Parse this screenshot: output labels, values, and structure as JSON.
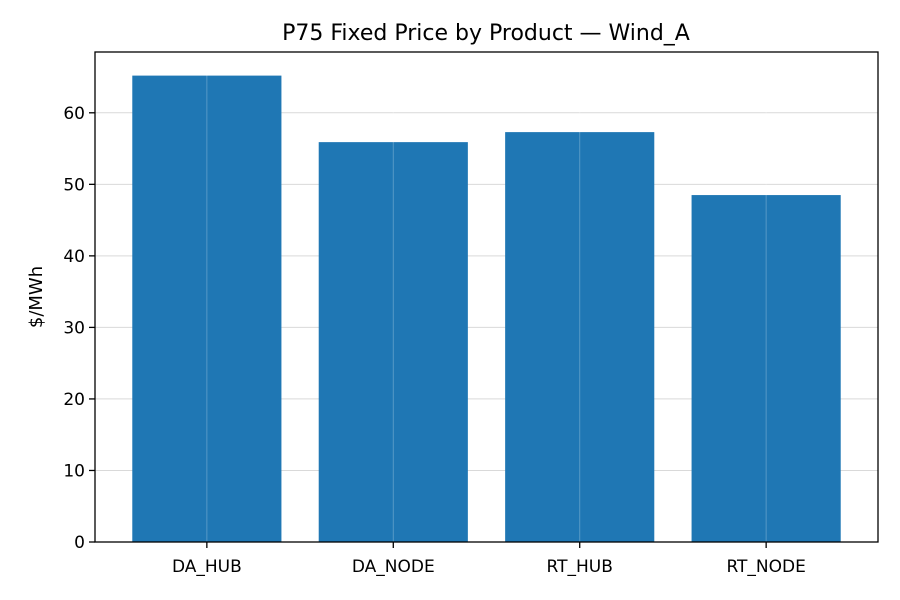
{
  "chart_data": {
    "type": "bar",
    "title": "P75 Fixed Price by Product — Wind_A",
    "xlabel": "",
    "ylabel": "$/MWh",
    "categories": [
      "DA_HUB",
      "DA_NODE",
      "RT_HUB",
      "RT_NODE"
    ],
    "values": [
      65.2,
      55.9,
      57.3,
      48.5
    ],
    "ylim": [
      0,
      68.5
    ],
    "yticks": [
      0,
      10,
      20,
      30,
      40,
      50,
      60
    ],
    "grid": true,
    "bar_color": "#1f77b4"
  }
}
